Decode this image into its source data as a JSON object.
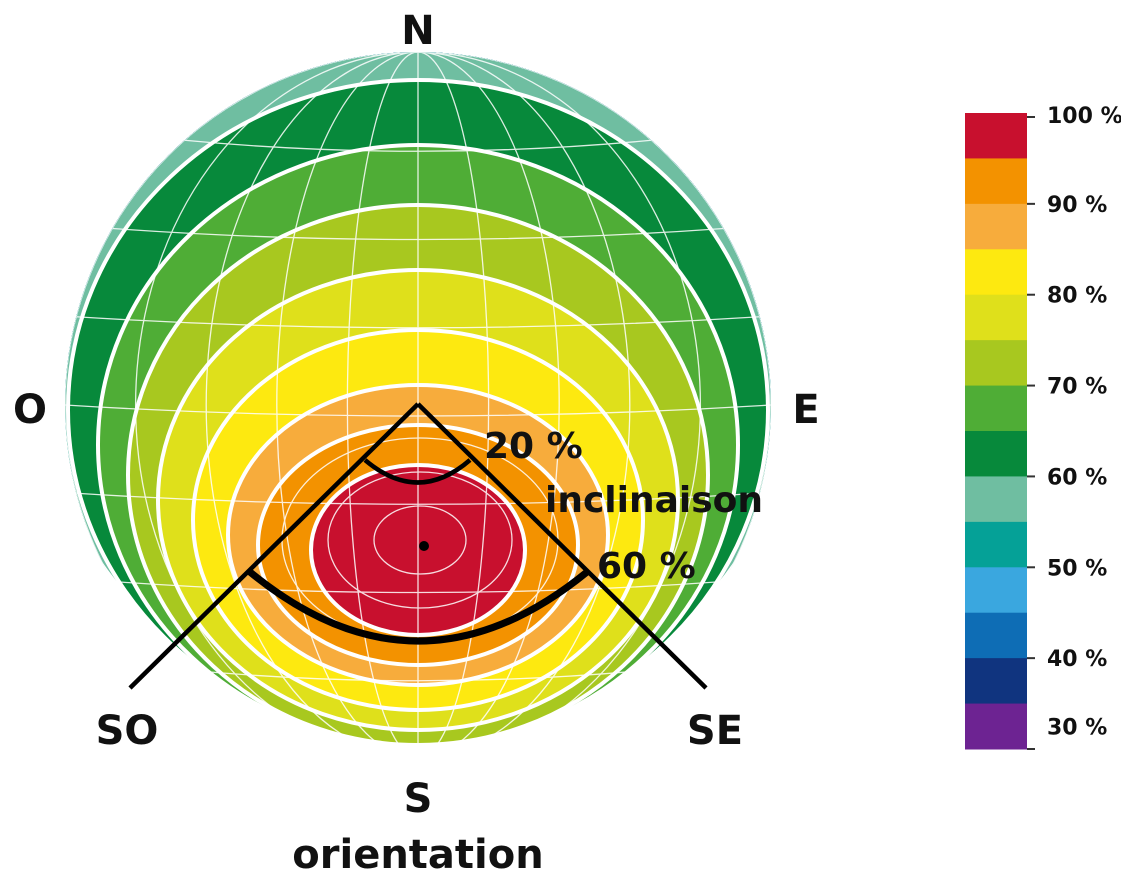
{
  "diagram": {
    "cardinals": {
      "north": "N",
      "south": "S",
      "east": "E",
      "west": "O",
      "southwest": "SO",
      "southeast": "SE"
    },
    "orientation_label": "orientation",
    "inclination_label": "inclinaison",
    "inclination_marks": [
      "20 %",
      "60 %"
    ],
    "optimum_marker": "optimum-dot"
  },
  "legend": {
    "colors": [
      "#c8102e",
      "#f39200",
      "#f7ac3c",
      "#fde910",
      "#dfe01b",
      "#a8c81f",
      "#4fad36",
      "#07893b",
      "#6fbea1",
      "#05a197",
      "#3aa7df",
      "#0e6db5",
      "#10347f",
      "#6d2392"
    ],
    "ticks": [
      "100 %",
      "90 %",
      "80 %",
      "70 %",
      "60 %",
      "50 %",
      "40 %",
      "30 %"
    ]
  }
}
